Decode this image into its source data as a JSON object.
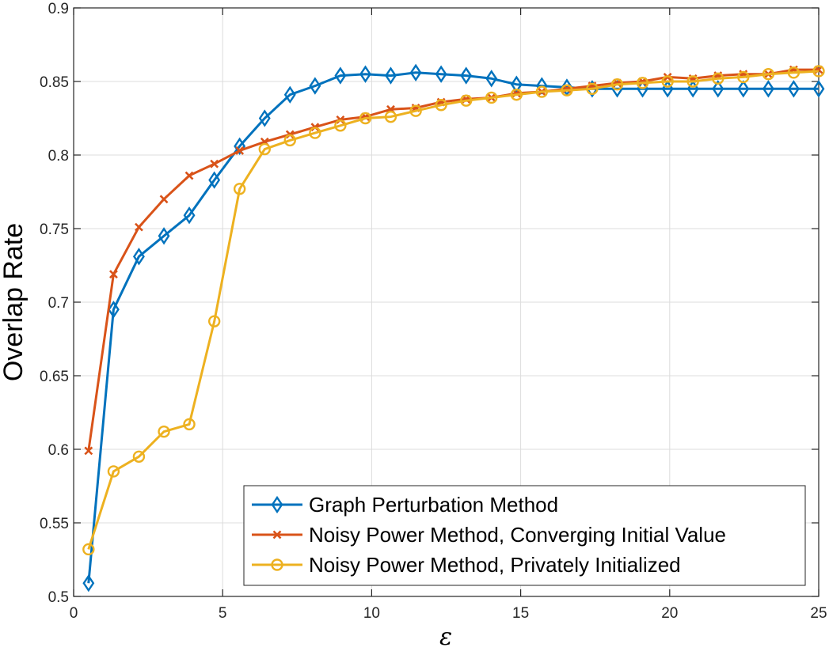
{
  "chart_data": {
    "type": "line",
    "title": "",
    "xlabel": "ε",
    "ylabel": "Overlap Rate",
    "xlim": [
      0,
      25
    ],
    "ylim": [
      0.5,
      0.9
    ],
    "xticks": [
      0,
      5,
      10,
      15,
      20,
      25
    ],
    "xtick_labels": [
      "0",
      "5",
      "10",
      "15",
      "20",
      "25"
    ],
    "yticks": [
      0.5,
      0.55,
      0.6,
      0.65,
      0.7,
      0.75,
      0.8,
      0.85,
      0.9
    ],
    "ytick_labels": [
      "0.5",
      "0.55",
      "0.6",
      "0.65",
      "0.7",
      "0.75",
      "0.8",
      "0.85",
      "0.9"
    ],
    "grid": true,
    "legend_position": "bottom-right",
    "x": [
      0.5,
      1.34,
      2.19,
      3.03,
      3.88,
      4.72,
      5.57,
      6.41,
      7.26,
      8.1,
      8.95,
      9.79,
      10.64,
      11.48,
      12.33,
      13.17,
      14.02,
      14.86,
      15.71,
      16.55,
      17.4,
      18.24,
      19.09,
      19.93,
      20.78,
      21.62,
      22.47,
      23.31,
      24.16,
      25.0
    ],
    "series": [
      {
        "name": "Graph Perturbation Method",
        "color": "#0072BD",
        "marker": "diamond",
        "values": [
          0.509,
          0.695,
          0.731,
          0.745,
          0.759,
          0.783,
          0.806,
          0.825,
          0.841,
          0.847,
          0.854,
          0.855,
          0.854,
          0.856,
          0.855,
          0.854,
          0.852,
          0.848,
          0.847,
          0.846,
          0.845,
          0.845,
          0.845,
          0.845,
          0.845,
          0.845,
          0.845,
          0.845,
          0.845,
          0.845
        ]
      },
      {
        "name": "Noisy Power Method, Converging Initial Value",
        "color": "#D95319",
        "marker": "x",
        "values": [
          0.599,
          0.719,
          0.751,
          0.77,
          0.786,
          0.794,
          0.803,
          0.809,
          0.814,
          0.819,
          0.824,
          0.826,
          0.831,
          0.832,
          0.836,
          0.838,
          0.839,
          0.842,
          0.843,
          0.845,
          0.847,
          0.849,
          0.85,
          0.853,
          0.852,
          0.854,
          0.855,
          0.855,
          0.858,
          0.858
        ]
      },
      {
        "name": "Noisy Power Method, Privately Initialized",
        "color": "#EDB120",
        "marker": "circle",
        "values": [
          0.532,
          0.585,
          0.595,
          0.612,
          0.617,
          0.687,
          0.777,
          0.804,
          0.81,
          0.815,
          0.82,
          0.825,
          0.826,
          0.83,
          0.834,
          0.837,
          0.839,
          0.841,
          0.843,
          0.844,
          0.845,
          0.848,
          0.849,
          0.85,
          0.85,
          0.852,
          0.853,
          0.855,
          0.856,
          0.857
        ]
      }
    ]
  }
}
